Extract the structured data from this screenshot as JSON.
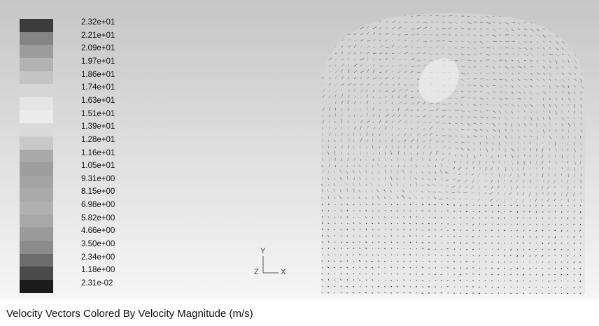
{
  "legend": {
    "ticks": [
      "2.32e+01",
      "2.21e+01",
      "2.09e+01",
      "1.97e+01",
      "1.86e+01",
      "1.74e+01",
      "1.63e+01",
      "1.51e+01",
      "1.39e+01",
      "1.28e+01",
      "1.16e+01",
      "1.05e+01",
      "9.31e+00",
      "8.15e+00",
      "6.98e+00",
      "5.82e+00",
      "4.66e+00",
      "3.50e+00",
      "2.34e+00",
      "1.18e+00",
      "2.31e-02"
    ],
    "colors": [
      "#3c3c3c",
      "#848484",
      "#9c9c9c",
      "#b2b2b2",
      "#c4c4c4",
      "#d6d6d6",
      "#e5e5e5",
      "#ececec",
      "#dadada",
      "#c9c9c9",
      "#a9a9a9",
      "#9e9e9e",
      "#a4a4a4",
      "#aaaaaa",
      "#b0b0b0",
      "#a8a8a8",
      "#9a9a9a",
      "#8c8c8c",
      "#6c6c6c",
      "#4a4a4a",
      "#1c1c1c"
    ]
  },
  "axis_triad": {
    "y": "Y",
    "z": "Z",
    "x": "X"
  },
  "caption": "Velocity Vectors Colored By Velocity Magnitude (m/s)"
}
